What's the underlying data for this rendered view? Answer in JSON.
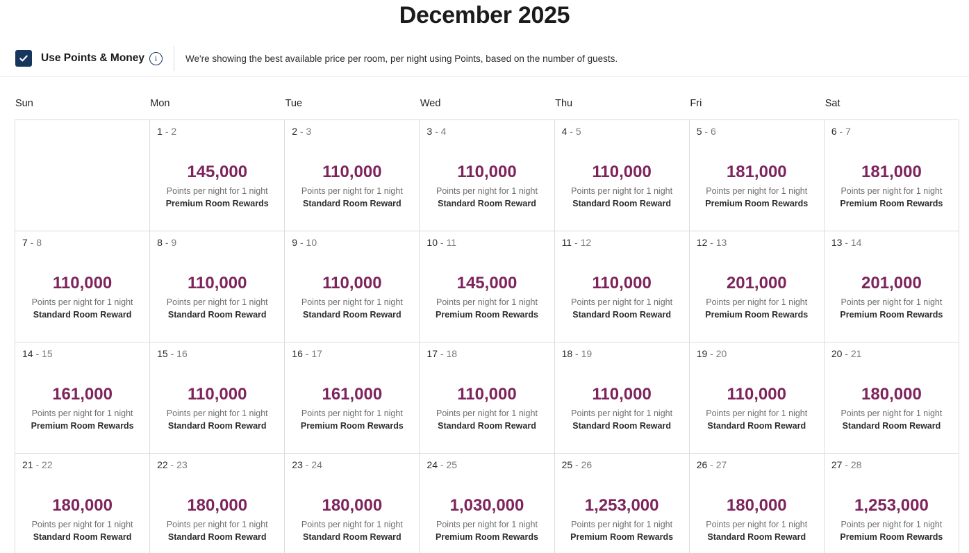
{
  "page_title": "December 2025",
  "controls": {
    "checkbox_label": "Use Points & Money",
    "checkbox_checked": true,
    "description": "We're showing the best available price per room, per night using Points, based on the number of guests."
  },
  "colors": {
    "points_accent": "#7e245c",
    "checkbox_navy": "#17365d",
    "cell_border": "#dcdcdc"
  },
  "calendar": {
    "weekday_headers": [
      "Sun",
      "Mon",
      "Tue",
      "Wed",
      "Thu",
      "Fri",
      "Sat"
    ],
    "per_night_label": "Points per night for 1 night",
    "weeks": [
      [
        null,
        {
          "start": "1",
          "end": "2",
          "points": "145,000",
          "per_night": "Points per night for 1 night",
          "room": "Premium Room Rewards"
        },
        {
          "start": "2",
          "end": "3",
          "points": "110,000",
          "per_night": "Points per night for 1 night",
          "room": "Standard Room Reward"
        },
        {
          "start": "3",
          "end": "4",
          "points": "110,000",
          "per_night": "Points per night for 1 night",
          "room": "Standard Room Reward"
        },
        {
          "start": "4",
          "end": "5",
          "points": "110,000",
          "per_night": "Points per night for 1 night",
          "room": "Standard Room Reward"
        },
        {
          "start": "5",
          "end": "6",
          "points": "181,000",
          "per_night": "Points per night for 1 night",
          "room": "Premium Room Rewards"
        },
        {
          "start": "6",
          "end": "7",
          "points": "181,000",
          "per_night": "Points per night for 1 night",
          "room": "Premium Room Rewards"
        }
      ],
      [
        {
          "start": "7",
          "end": "8",
          "points": "110,000",
          "per_night": "Points per night for 1 night",
          "room": "Standard Room Reward"
        },
        {
          "start": "8",
          "end": "9",
          "points": "110,000",
          "per_night": "Points per night for 1 night",
          "room": "Standard Room Reward"
        },
        {
          "start": "9",
          "end": "10",
          "points": "110,000",
          "per_night": "Points per night for 1 night",
          "room": "Standard Room Reward"
        },
        {
          "start": "10",
          "end": "11",
          "points": "145,000",
          "per_night": "Points per night for 1 night",
          "room": "Premium Room Rewards"
        },
        {
          "start": "11",
          "end": "12",
          "points": "110,000",
          "per_night": "Points per night for 1 night",
          "room": "Standard Room Reward"
        },
        {
          "start": "12",
          "end": "13",
          "points": "201,000",
          "per_night": "Points per night for 1 night",
          "room": "Premium Room Rewards"
        },
        {
          "start": "13",
          "end": "14",
          "points": "201,000",
          "per_night": "Points per night for 1 night",
          "room": "Premium Room Rewards"
        }
      ],
      [
        {
          "start": "14",
          "end": "15",
          "points": "161,000",
          "per_night": "Points per night for 1 night",
          "room": "Premium Room Rewards"
        },
        {
          "start": "15",
          "end": "16",
          "points": "110,000",
          "per_night": "Points per night for 1 night",
          "room": "Standard Room Reward"
        },
        {
          "start": "16",
          "end": "17",
          "points": "161,000",
          "per_night": "Points per night for 1 night",
          "room": "Premium Room Rewards"
        },
        {
          "start": "17",
          "end": "18",
          "points": "110,000",
          "per_night": "Points per night for 1 night",
          "room": "Standard Room Reward"
        },
        {
          "start": "18",
          "end": "19",
          "points": "110,000",
          "per_night": "Points per night for 1 night",
          "room": "Standard Room Reward"
        },
        {
          "start": "19",
          "end": "20",
          "points": "110,000",
          "per_night": "Points per night for 1 night",
          "room": "Standard Room Reward"
        },
        {
          "start": "20",
          "end": "21",
          "points": "180,000",
          "per_night": "Points per night for 1 night",
          "room": "Standard Room Reward"
        }
      ],
      [
        {
          "start": "21",
          "end": "22",
          "points": "180,000",
          "per_night": "Points per night for 1 night",
          "room": "Standard Room Reward"
        },
        {
          "start": "22",
          "end": "23",
          "points": "180,000",
          "per_night": "Points per night for 1 night",
          "room": "Standard Room Reward"
        },
        {
          "start": "23",
          "end": "24",
          "points": "180,000",
          "per_night": "Points per night for 1 night",
          "room": "Standard Room Reward"
        },
        {
          "start": "24",
          "end": "25",
          "points": "1,030,000",
          "per_night": "Points per night for 1 night",
          "room": "Premium Room Rewards"
        },
        {
          "start": "25",
          "end": "26",
          "points": "1,253,000",
          "per_night": "Points per night for 1 night",
          "room": "Premium Room Rewards"
        },
        {
          "start": "26",
          "end": "27",
          "points": "180,000",
          "per_night": "Points per night for 1 night",
          "room": "Standard Room Reward"
        },
        {
          "start": "27",
          "end": "28",
          "points": "1,253,000",
          "per_night": "Points per night for 1 night",
          "room": "Premium Room Rewards"
        }
      ]
    ]
  }
}
